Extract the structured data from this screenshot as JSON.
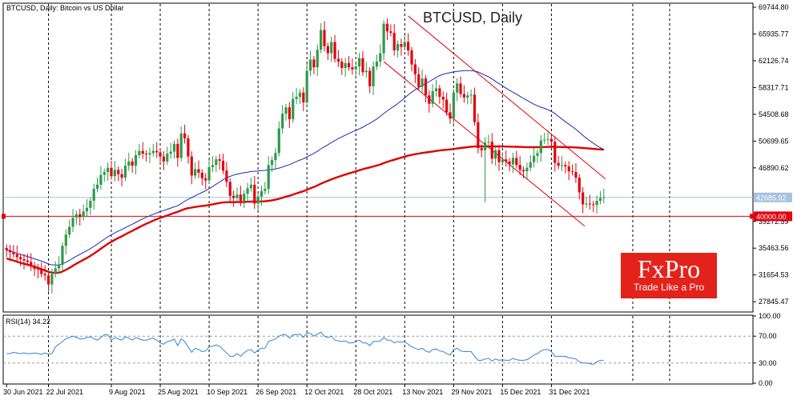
{
  "chart_data": [
    {
      "type": "candlestick",
      "header": "BTCUSD, Daily:  Bitcoin vs US Dollar",
      "title": "BTCUSD, Daily",
      "ylim": [
        26500,
        70200
      ],
      "y_ticks": [
        "69744.80",
        "65935.77",
        "62126.74",
        "58317.71",
        "54508.68",
        "50699.65",
        "46890.62",
        "39272.59",
        "35463.56",
        "31654.53",
        "27845.47"
      ],
      "y_tick_values": [
        69744.8,
        65935.77,
        62126.74,
        58317.71,
        54508.68,
        50699.65,
        46890.62,
        39272.59,
        35463.56,
        31654.53,
        27845.47
      ],
      "x_labels": [
        "30 Jun 2021",
        "22 Jul 2021",
        "9 Aug 2021",
        "25 Aug 2021",
        "10 Sep 2021",
        "26 Sep 2021",
        "12 Oct 2021",
        "28 Oct 2021",
        "13 Nov 2021",
        "29 Nov 2021",
        "15 Dec 2021",
        "31 Dec 2021"
      ],
      "current_price_label": "42685.92",
      "current_price": 42685.92,
      "level_label": "40000.00",
      "level": 40000,
      "candle_close": [
        35200,
        34900,
        34600,
        34200,
        33900,
        33700,
        33500,
        33000,
        32500,
        32400,
        31800,
        31600,
        30300,
        31800,
        32600,
        33100,
        35800,
        37400,
        38500,
        39800,
        40300,
        39900,
        40700,
        41200,
        42200,
        43900,
        44500,
        45900,
        46300,
        46900,
        45700,
        46600,
        46000,
        45500,
        47200,
        47800,
        47200,
        48700,
        49300,
        48900,
        48800,
        49000,
        49300,
        49100,
        48500,
        47800,
        48900,
        49200,
        50300,
        48300,
        51800,
        51100,
        48500,
        45800,
        46700,
        46200,
        45400,
        45100,
        47000,
        47300,
        48100,
        47900,
        46500,
        44900,
        42900,
        42600,
        43100,
        42200,
        43200,
        44000,
        44500,
        41800,
        42800,
        43600,
        43900,
        47300,
        48000,
        49000,
        52500,
        54600,
        55500,
        53800,
        56700,
        57000,
        57600,
        56200,
        60700,
        62300,
        61200,
        63700,
        66500,
        64200,
        63200,
        64800,
        62400,
        62000,
        61100,
        61800,
        61200,
        60900,
        61300,
        62500,
        60500,
        60700,
        58500,
        61300,
        62000,
        63200,
        67400,
        66300,
        66100,
        63600,
        64500,
        64100,
        64800,
        63600,
        61600,
        60200,
        58400,
        59600,
        57200,
        56000,
        57800,
        58200,
        57000,
        56600,
        54800,
        53900,
        57600,
        58900,
        57400,
        56900,
        57200,
        57300,
        53400,
        49700,
        49400,
        50500,
        50600,
        48200,
        49400,
        47700,
        48100,
        47800,
        47400,
        48300,
        47300,
        46600,
        46400,
        46900,
        47700,
        48600,
        49000,
        50800,
        50900,
        51000,
        50600,
        47600,
        47200,
        47300,
        47100,
        46400,
        46300,
        45500,
        43400,
        41700,
        41800,
        41700,
        41600,
        42200,
        42600,
        42700
      ]
    },
    {
      "type": "line",
      "title": "RSI(14) 34.22",
      "ylim": [
        0,
        100
      ],
      "y_ticks": [
        "100.00",
        "70.00",
        "30.00",
        "0.00"
      ],
      "y_tick_values": [
        100,
        70,
        30,
        0
      ],
      "levels": [
        70,
        30
      ],
      "values": [
        44,
        44,
        46,
        45,
        44,
        45,
        44,
        44,
        45,
        44,
        43,
        45,
        43,
        44,
        54,
        58,
        62,
        66,
        68,
        70,
        68,
        66,
        66,
        68,
        69,
        66,
        64,
        68,
        72,
        72,
        64,
        68,
        66,
        64,
        69,
        67,
        64,
        68,
        66,
        64,
        64,
        66,
        67,
        64,
        60,
        58,
        62,
        63,
        66,
        56,
        66,
        62,
        54,
        46,
        52,
        50,
        47,
        48,
        54,
        55,
        57,
        55,
        50,
        45,
        40,
        40,
        44,
        40,
        45,
        49,
        50,
        45,
        49,
        52,
        52,
        62,
        64,
        66,
        70,
        72,
        72,
        67,
        72,
        72,
        73,
        68,
        75,
        74,
        70,
        73,
        76,
        70,
        68,
        70,
        64,
        63,
        62,
        63,
        60,
        60,
        62,
        64,
        60,
        60,
        56,
        62,
        62,
        63,
        68,
        64,
        64,
        60,
        62,
        61,
        62,
        58,
        54,
        52,
        50,
        52,
        48,
        46,
        50,
        51,
        48,
        47,
        44,
        42,
        50,
        52,
        48,
        47,
        47,
        47,
        40,
        34,
        34,
        36,
        37,
        33,
        36,
        34,
        35,
        34,
        34,
        37,
        35,
        34,
        34,
        35,
        38,
        42,
        44,
        48,
        50,
        50,
        47,
        40,
        40,
        40,
        40,
        38,
        37,
        36,
        32,
        30,
        30,
        29,
        28,
        32,
        34,
        34
      ]
    }
  ],
  "colors": {
    "bull": "#2e9a4a",
    "bear": "#e4000f",
    "ma_slow": "#dd0000",
    "ma_fast": "#1c2ab8",
    "channel": "#e4000f",
    "rsi": "#2f86d6",
    "grid": "#000000",
    "price_line": "#a6c3de"
  },
  "logo": {
    "name": "FxPro",
    "tagline": "Trade Like a Pro"
  }
}
